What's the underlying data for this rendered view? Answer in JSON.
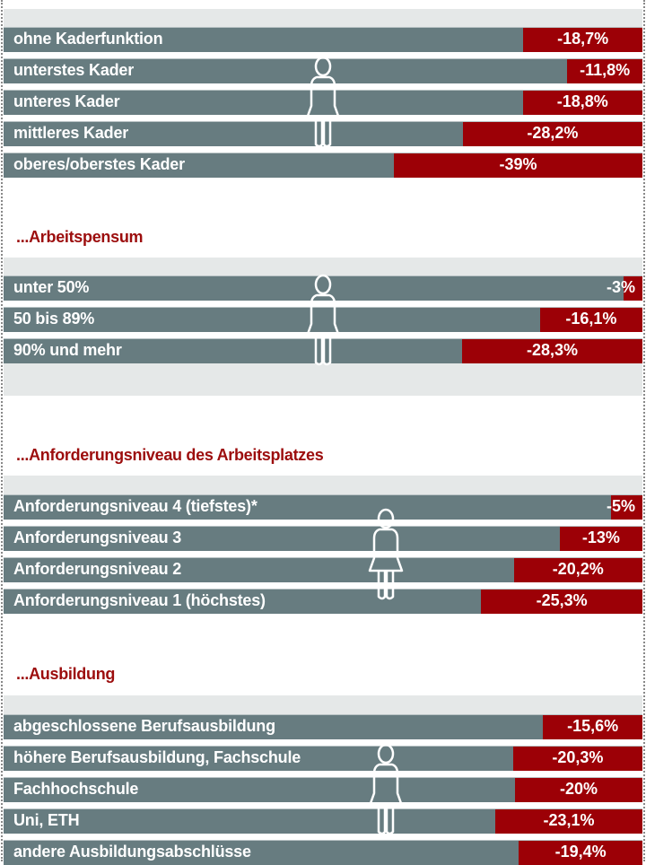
{
  "chart_data": {
    "type": "bar",
    "orientation": "horizontal",
    "unit": "%",
    "colors": {
      "bar": "#677c80",
      "value": "#9c0006",
      "heading": "#9c0d0d",
      "band": "#e5e8e8"
    },
    "icon": "woman-figure-icon",
    "sections": [
      {
        "title": "",
        "categories": [
          "ohne Kaderfunktion",
          "unterstes Kader",
          "unteres Kader",
          "mittleres Kader",
          "oberes/oberstes Kader"
        ],
        "values": [
          -18.7,
          -11.8,
          -18.8,
          -28.2,
          -39
        ],
        "labels": [
          "-18,7%",
          "-11,8%",
          "-18,8%",
          "-28,2%",
          "-39%"
        ]
      },
      {
        "title": "...Arbeitspensum",
        "categories": [
          "unter 50%",
          "50 bis 89%",
          "90% und mehr"
        ],
        "values": [
          -3,
          -16.1,
          -28.3
        ],
        "labels": [
          "-3%",
          "-16,1%",
          "-28,3%"
        ]
      },
      {
        "title": "...Anforderungsniveau des Arbeitsplatzes",
        "categories": [
          "Anforderungsniveau 4 (tiefstes)*",
          "Anforderungsniveau 3",
          "Anforderungsniveau 2",
          "Anforderungsniveau 1 (höchstes)"
        ],
        "values": [
          -5,
          -13,
          -20.2,
          -25.3
        ],
        "labels": [
          "-5%",
          "-13%",
          "-20,2%",
          "-25,3%"
        ]
      },
      {
        "title": "...Ausbildung",
        "categories": [
          "abgeschlossene Berufsausbildung",
          "höhere Berufsausbildung, Fachschule",
          "Fachhochschule",
          "Uni, ETH",
          "andere Ausbildungsabschlüsse"
        ],
        "values": [
          -15.6,
          -20.3,
          -20,
          -23.1,
          -19.4
        ],
        "labels": [
          "-15,6%",
          "-20,3%",
          "-20%",
          "-23,1%",
          "-19,4%"
        ]
      }
    ]
  }
}
